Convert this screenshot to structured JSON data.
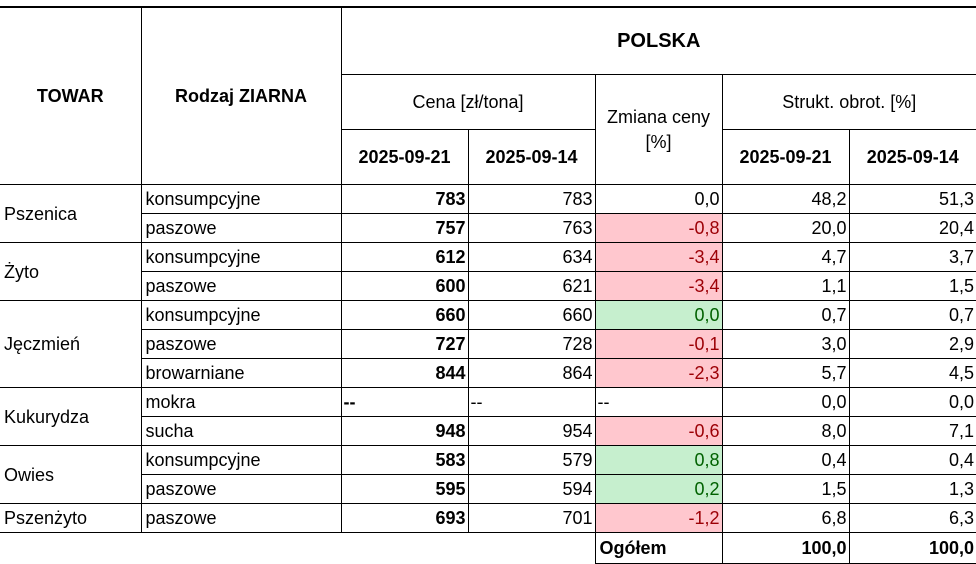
{
  "header": {
    "towar": "TOWAR",
    "rodzaj": "Rodzaj ZIARNA",
    "region": "POLSKA",
    "price_group": "Cena [zł/tona]",
    "change": "Zmiana ceny [%]",
    "structure_group": "Strukt. obrot. [%]",
    "date_current": "2025-09-21",
    "date_previous": "2025-09-14"
  },
  "groups": [
    {
      "towar": "Pszenica",
      "rows": [
        {
          "rodzaj": "konsumpcyjne",
          "price_current": "783",
          "price_previous": "783",
          "change": "0,0",
          "change_style": "none",
          "struct_current": "48,2",
          "struct_previous": "51,3"
        },
        {
          "rodzaj": "paszowe",
          "price_current": "757",
          "price_previous": "763",
          "change": "-0,8",
          "change_style": "neg",
          "struct_current": "20,0",
          "struct_previous": "20,4"
        }
      ]
    },
    {
      "towar": "Żyto",
      "rows": [
        {
          "rodzaj": "konsumpcyjne",
          "price_current": "612",
          "price_previous": "634",
          "change": "-3,4",
          "change_style": "neg",
          "struct_current": "4,7",
          "struct_previous": "3,7"
        },
        {
          "rodzaj": "paszowe",
          "price_current": "600",
          "price_previous": "621",
          "change": "-3,4",
          "change_style": "neg",
          "struct_current": "1,1",
          "struct_previous": "1,5"
        }
      ]
    },
    {
      "towar": "Jęczmień",
      "rows": [
        {
          "rodzaj": "konsumpcyjne",
          "price_current": "660",
          "price_previous": "660",
          "change": "0,0",
          "change_style": "pos",
          "struct_current": "0,7",
          "struct_previous": "0,7"
        },
        {
          "rodzaj": "paszowe",
          "price_current": "727",
          "price_previous": "728",
          "change": "-0,1",
          "change_style": "neg",
          "struct_current": "3,0",
          "struct_previous": "2,9"
        },
        {
          "rodzaj": "browarniane",
          "price_current": "844",
          "price_previous": "864",
          "change": "-2,3",
          "change_style": "neg",
          "struct_current": "5,7",
          "struct_previous": "4,5"
        }
      ]
    },
    {
      "towar": "Kukurydza",
      "rows": [
        {
          "rodzaj": "mokra",
          "price_current": "--",
          "price_previous": "--",
          "change": "--",
          "change_style": "dash",
          "struct_current": "0,0",
          "struct_previous": "0,0"
        },
        {
          "rodzaj": "sucha",
          "price_current": "948",
          "price_previous": "954",
          "change": "-0,6",
          "change_style": "neg",
          "struct_current": "8,0",
          "struct_previous": "7,1"
        }
      ]
    },
    {
      "towar": "Owies",
      "rows": [
        {
          "rodzaj": "konsumpcyjne",
          "price_current": "583",
          "price_previous": "579",
          "change": "0,8",
          "change_style": "pos",
          "struct_current": "0,4",
          "struct_previous": "0,4"
        },
        {
          "rodzaj": "paszowe",
          "price_current": "595",
          "price_previous": "594",
          "change": "0,2",
          "change_style": "pos",
          "struct_current": "1,5",
          "struct_previous": "1,3"
        }
      ]
    },
    {
      "towar": "Pszenżyto",
      "rows": [
        {
          "rodzaj": "paszowe",
          "price_current": "693",
          "price_previous": "701",
          "change": "-1,2",
          "change_style": "neg",
          "struct_current": "6,8",
          "struct_previous": "6,3"
        }
      ]
    }
  ],
  "total": {
    "label": "Ogółem",
    "struct_current": "100,0",
    "struct_previous": "100,0"
  },
  "colors": {
    "negative_fill": "#ffc7ce",
    "negative_text": "#9c0006",
    "positive_fill": "#c6efce",
    "positive_text": "#006100"
  }
}
